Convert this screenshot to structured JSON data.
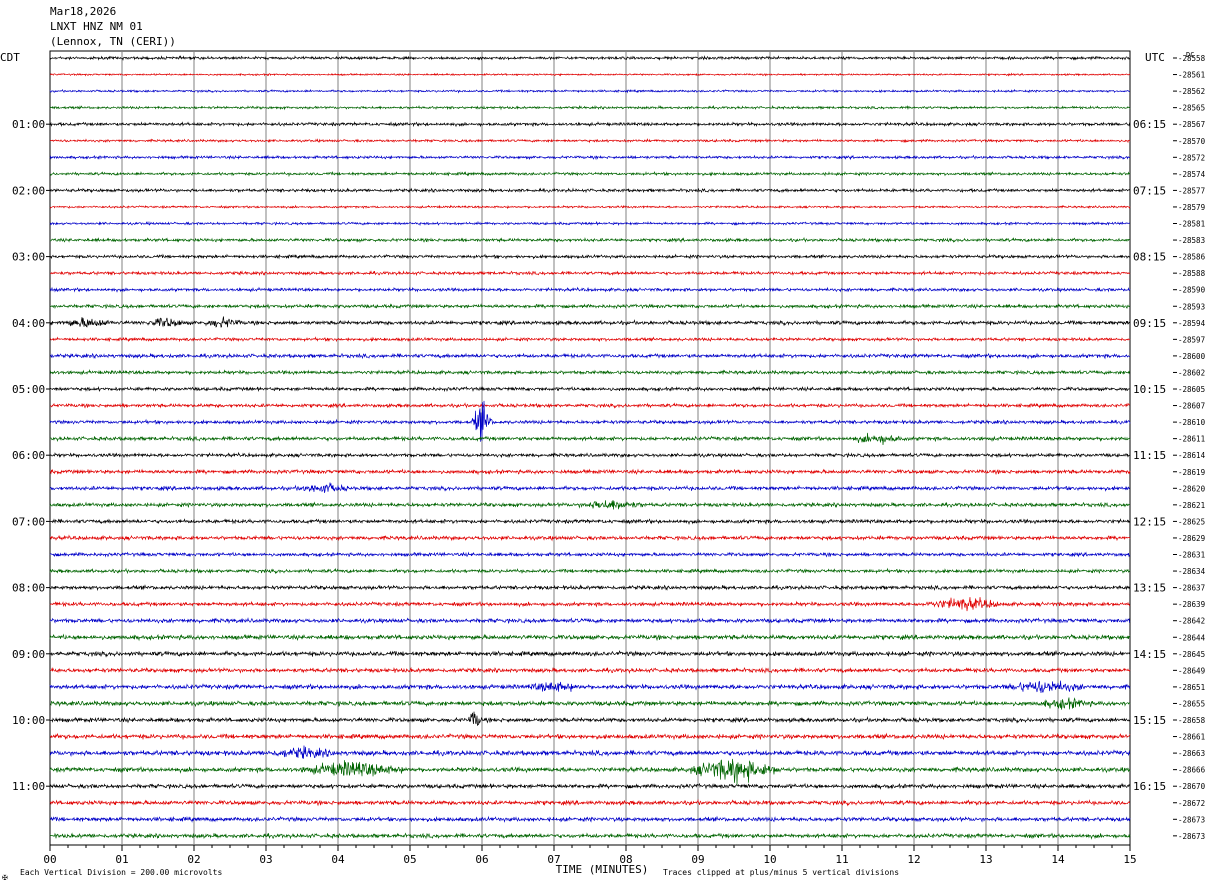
{
  "header": {
    "date": "Mar18,2026",
    "station": "LNXT HNZ NM 01",
    "location": "(Lennox, TN (CERI))"
  },
  "left_tz": "CDT",
  "right_tz": "UTC",
  "dc_label": "DC",
  "footer": {
    "scale_note": "Each Vertical Division =  200.00 microvolts",
    "clip_note": "Traces clipped at plus/minus 5 vertical divisions",
    "corner_mark": "✠"
  },
  "colors": {
    "cycle": [
      "#000000",
      "#e00000",
      "#0000c8",
      "#006400"
    ],
    "grid": "#808080",
    "frame": "#000000"
  },
  "chart_data": {
    "type": "line",
    "title": "",
    "xlabel": "TIME (MINUTES)",
    "xlim": [
      0,
      15
    ],
    "x_ticks": [
      "00",
      "01",
      "02",
      "03",
      "04",
      "05",
      "06",
      "07",
      "08",
      "09",
      "10",
      "11",
      "12",
      "13",
      "14",
      "15"
    ],
    "grid": true,
    "lines_per_hour": 4,
    "minutes_per_line": 15,
    "left_hour_labels": [
      "01:00",
      "02:00",
      "03:00",
      "04:00",
      "05:00",
      "06:00",
      "07:00",
      "08:00",
      "09:00",
      "10:00",
      "11:00"
    ],
    "right_hour_labels": [
      "06:15",
      "07:15",
      "08:15",
      "09:15",
      "10:15",
      "11:15",
      "12:15",
      "13:15",
      "14:15",
      "15:15",
      "16:15"
    ],
    "dc_offsets": [
      -28558,
      -28561,
      -28562,
      -28565,
      -28567,
      -28570,
      -28572,
      -28574,
      -28577,
      -28579,
      -28581,
      -28583,
      -28586,
      -28588,
      -28590,
      -28593,
      -28594,
      -28597,
      -28600,
      -28602,
      -28605,
      -28607,
      -28610,
      -28611,
      -28614,
      -28619,
      -28620,
      -28621,
      -28625,
      -28629,
      -28631,
      -28634,
      -28637,
      -28639,
      -28642,
      -28644,
      -28645,
      -28649,
      -28651,
      -28655,
      -28658,
      -28661,
      -28663,
      -28666,
      -28670,
      -28672,
      -28673,
      -28673
    ],
    "noise_level": [
      0.8,
      0.5,
      0.6,
      0.7,
      0.9,
      0.7,
      0.8,
      0.8,
      0.9,
      0.6,
      0.7,
      0.9,
      0.9,
      0.9,
      0.9,
      1.0,
      1.1,
      0.9,
      1.1,
      1.0,
      1.0,
      1.0,
      1.0,
      1.1,
      1.0,
      1.1,
      1.1,
      1.1,
      1.1,
      1.1,
      1.0,
      1.0,
      1.1,
      1.1,
      1.2,
      1.3,
      1.3,
      1.2,
      1.3,
      1.3,
      1.2,
      1.3,
      1.4,
      1.3,
      1.2,
      1.2,
      1.2,
      1.2
    ],
    "events": [
      {
        "line": 16,
        "minute": 0.5,
        "amp": 3,
        "dur": 0.4
      },
      {
        "line": 16,
        "minute": 1.6,
        "amp": 3,
        "dur": 0.3
      },
      {
        "line": 16,
        "minute": 2.4,
        "amp": 3,
        "dur": 0.3
      },
      {
        "line": 22,
        "minute": 6.0,
        "amp": 14,
        "dur": 0.15
      },
      {
        "line": 23,
        "minute": 11.5,
        "amp": 3,
        "dur": 0.4
      },
      {
        "line": 26,
        "minute": 3.8,
        "amp": 3,
        "dur": 0.4
      },
      {
        "line": 27,
        "minute": 7.8,
        "amp": 3,
        "dur": 0.5
      },
      {
        "line": 33,
        "minute": 12.7,
        "amp": 4,
        "dur": 0.6
      },
      {
        "line": 38,
        "minute": 13.8,
        "amp": 4,
        "dur": 0.6
      },
      {
        "line": 38,
        "minute": 7.0,
        "amp": 3,
        "dur": 0.4
      },
      {
        "line": 39,
        "minute": 14.1,
        "amp": 3,
        "dur": 0.4
      },
      {
        "line": 40,
        "minute": 5.9,
        "amp": 7,
        "dur": 0.1
      },
      {
        "line": 42,
        "minute": 3.5,
        "amp": 3,
        "dur": 0.5
      },
      {
        "line": 43,
        "minute": 4.2,
        "amp": 5,
        "dur": 0.8
      },
      {
        "line": 43,
        "minute": 9.5,
        "amp": 8,
        "dur": 0.7
      }
    ]
  }
}
